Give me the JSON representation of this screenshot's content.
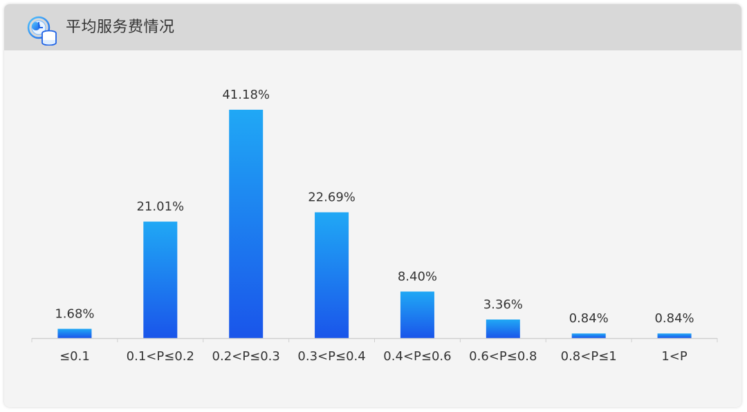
{
  "header": {
    "title": "平均服务费情况",
    "icon": "coins-clock-icon"
  },
  "colors": {
    "bar_top": "#20a8f5",
    "bar_bottom": "#1a55ea",
    "axis": "#cfcfcf",
    "label": "#333333",
    "header_bg": "#d8d8d8",
    "card_bg": "#f4f4f4"
  },
  "chart_data": {
    "type": "bar",
    "categories": [
      "≤0.1",
      "0.1<P≤0.2",
      "0.2<P≤0.3",
      "0.3<P≤0.4",
      "0.4<P≤0.6",
      "0.6<P≤0.8",
      "0.8<P≤1",
      "1<P"
    ],
    "values": [
      1.68,
      21.01,
      41.18,
      22.69,
      8.4,
      3.36,
      0.84,
      0.84
    ],
    "data_labels": [
      "1.68%",
      "21.01%",
      "41.18%",
      "22.69%",
      "8.40%",
      "3.36%",
      "0.84%",
      "0.84%"
    ],
    "ylim": [
      0,
      45
    ],
    "grid": false,
    "legend": "none",
    "xlabel": "",
    "ylabel": ""
  }
}
